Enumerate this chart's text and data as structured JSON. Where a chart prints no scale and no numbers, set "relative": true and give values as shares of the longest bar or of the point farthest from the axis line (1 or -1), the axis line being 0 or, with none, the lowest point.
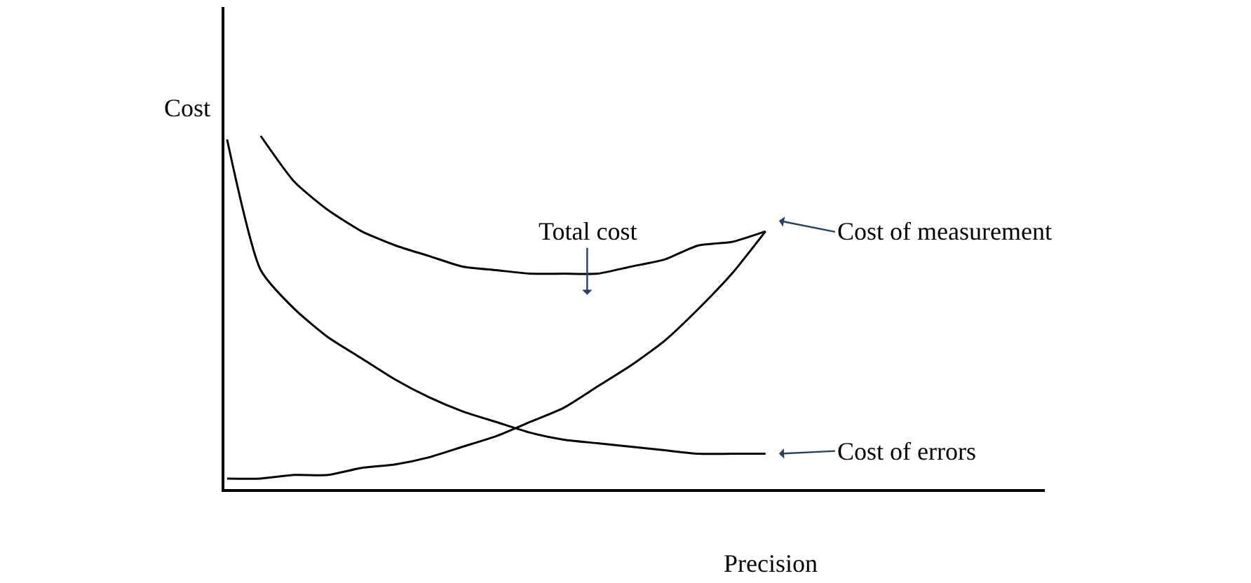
{
  "chart_data": {
    "type": "line",
    "relative": true,
    "xlabel": "Precision",
    "ylabel": "Cost",
    "legend": false,
    "marker": "none",
    "line_style": "solid",
    "categories": [
      null,
      null,
      null,
      null,
      null,
      null,
      null,
      null,
      null,
      null,
      null,
      null,
      null,
      null,
      null,
      null,
      null
    ],
    "series": [
      {
        "name": "Total cost",
        "color": "#000000",
        "values": [
          null,
          1.0,
          0.87,
          0.79,
          0.73,
          0.69,
          0.66,
          0.63,
          0.62,
          0.61,
          0.61,
          0.61,
          0.63,
          0.65,
          0.69,
          0.7,
          0.73
        ]
      },
      {
        "name": "Cost of measurement",
        "color": "#000000",
        "values": [
          0.03,
          0.03,
          0.04,
          0.04,
          0.06,
          0.07,
          0.09,
          0.12,
          0.15,
          0.19,
          0.23,
          0.29,
          0.35,
          0.42,
          0.51,
          0.61,
          0.73
        ]
      },
      {
        "name": "Cost of errors",
        "color": "#000000",
        "values": [
          0.99,
          0.62,
          0.51,
          0.43,
          0.37,
          0.31,
          0.26,
          0.22,
          0.19,
          0.16,
          0.14,
          0.13,
          0.12,
          0.11,
          0.1,
          0.1,
          0.1
        ]
      }
    ]
  }
}
